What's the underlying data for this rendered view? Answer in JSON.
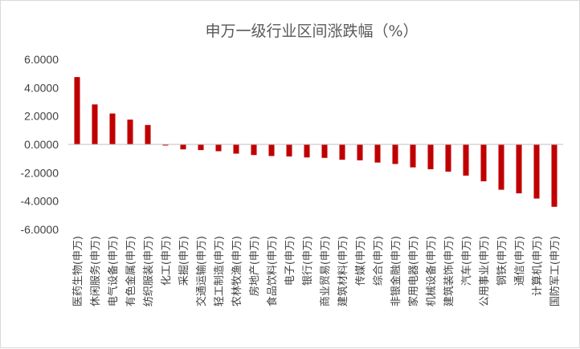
{
  "chart_data": {
    "type": "bar",
    "title": "申万一级行业区间涨跌幅（%）",
    "xlabel": "",
    "ylabel": "",
    "ylim": [
      -6,
      6
    ],
    "yticks": [
      "-6.0000",
      "-4.0000",
      "-2.0000",
      "0.0000",
      "2.0000",
      "4.0000",
      "6.0000"
    ],
    "grid": false,
    "legend": "none",
    "bar_color": "#c00000",
    "categories": [
      "医药生物(申万)",
      "休闲服务(申万)",
      "电气设备(申万)",
      "有色金属(申万)",
      "纺织服装(申万)",
      "化工(申万)",
      "采掘(申万)",
      "交通运输(申万)",
      "轻工制造(申万)",
      "农林牧渔(申万)",
      "房地产(申万)",
      "食品饮料(申万)",
      "电子(申万)",
      "银行(申万)",
      "商业贸易(申万)",
      "建筑材料(申万)",
      "传媒(申万)",
      "综合(申万)",
      "非银金融(申万)",
      "家用电器(申万)",
      "机械设备(申万)",
      "建筑装饰(申万)",
      "汽车(申万)",
      "公用事业(申万)",
      "钢铁(申万)",
      "通信(申万)",
      "计算机(申万)",
      "国防军工(申万)"
    ],
    "values": [
      4.75,
      2.82,
      2.18,
      1.75,
      1.37,
      -0.08,
      -0.35,
      -0.4,
      -0.48,
      -0.65,
      -0.75,
      -0.82,
      -0.85,
      -0.92,
      -0.95,
      -1.08,
      -1.12,
      -1.28,
      -1.38,
      -1.62,
      -1.75,
      -1.92,
      -2.2,
      -2.6,
      -3.2,
      -3.45,
      -3.82,
      -4.4
    ]
  }
}
